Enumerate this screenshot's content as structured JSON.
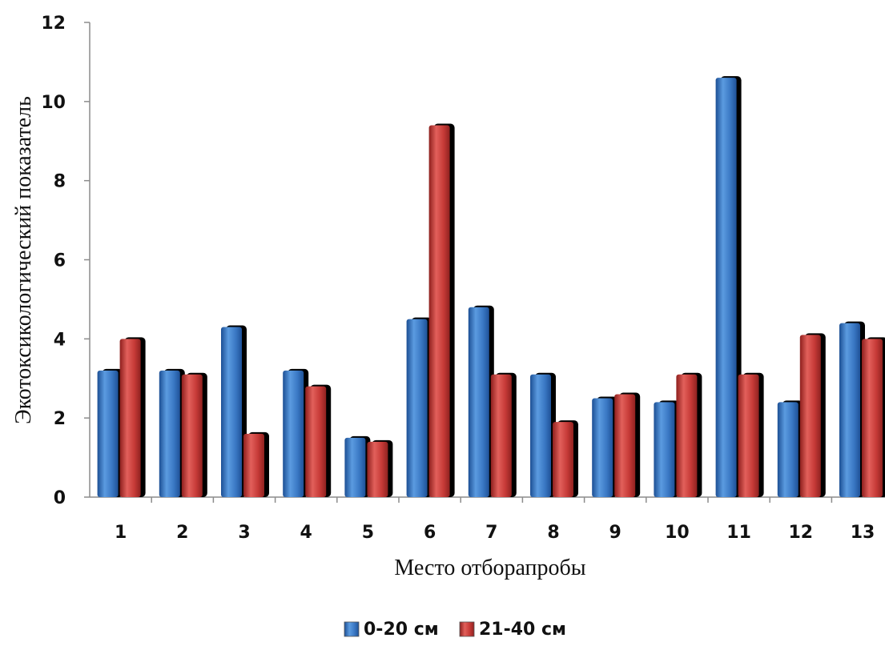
{
  "chart_data": {
    "type": "bar",
    "title": "",
    "xlabel": "Место отборапробы",
    "ylabel": "Экотоксикологический показатель",
    "categories": [
      "1",
      "2",
      "3",
      "4",
      "5",
      "6",
      "7",
      "8",
      "9",
      "10",
      "11",
      "12",
      "13"
    ],
    "ylim": [
      0,
      12
    ],
    "yticks": [
      "0",
      "2",
      "4",
      "6",
      "8",
      "10",
      "12"
    ],
    "grid": false,
    "legend_position": "bottom",
    "series": [
      {
        "name": "0-20 см",
        "color": "#3a78c4",
        "values": [
          3.2,
          3.2,
          4.3,
          3.2,
          1.5,
          4.5,
          4.8,
          3.1,
          2.5,
          2.4,
          10.6,
          2.4,
          4.4
        ]
      },
      {
        "name": "21-40 см",
        "color": "#c63a37",
        "values": [
          4.0,
          3.1,
          1.6,
          2.8,
          1.4,
          9.4,
          3.1,
          1.9,
          2.6,
          3.1,
          3.1,
          4.1,
          4.0
        ]
      }
    ]
  }
}
